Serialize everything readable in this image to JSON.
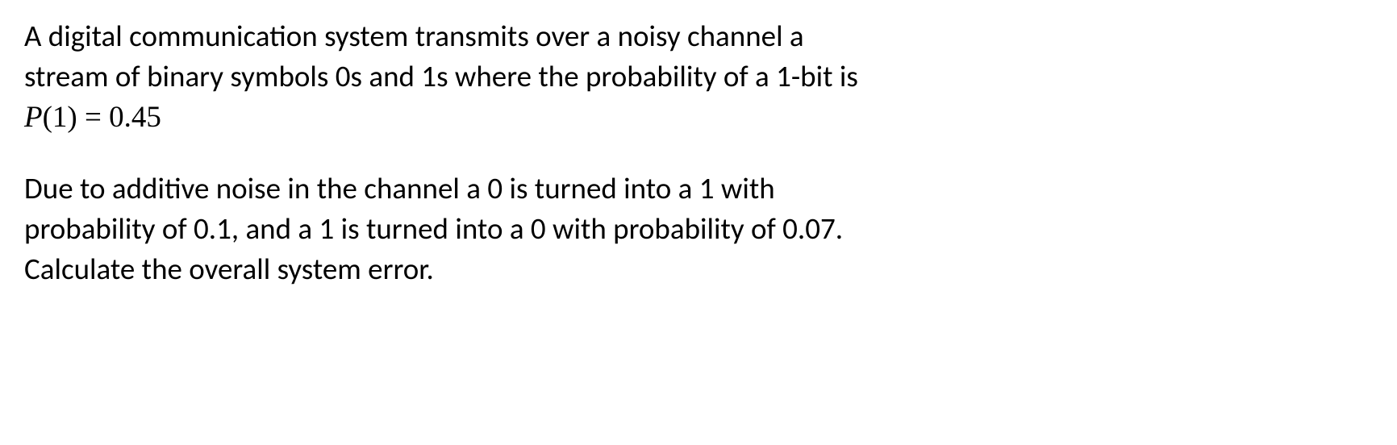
{
  "paragraph1": {
    "line1": "A digital communication system transmits over a noisy channel a",
    "line2": "stream of binary symbols 0s and 1s where the probability of a 1-bit is",
    "equation_var": "P",
    "equation_open": "(1)",
    "equation_eq": " = ",
    "equation_val": "0.45"
  },
  "paragraph2": {
    "line1": "Due to additive noise in the channel a 0 is turned into a 1 with",
    "line2": "probability of 0.1, and a 1 is turned into a 0 with probability of 0.07.",
    "line3": "Calculate the overall system error."
  },
  "styling": {
    "font_size": 37,
    "text_color": "#000000",
    "background_color": "#ffffff",
    "body_font": "Calibri",
    "math_font": "Times New Roman",
    "line_height": 1.35,
    "paragraph_gap": 38
  }
}
